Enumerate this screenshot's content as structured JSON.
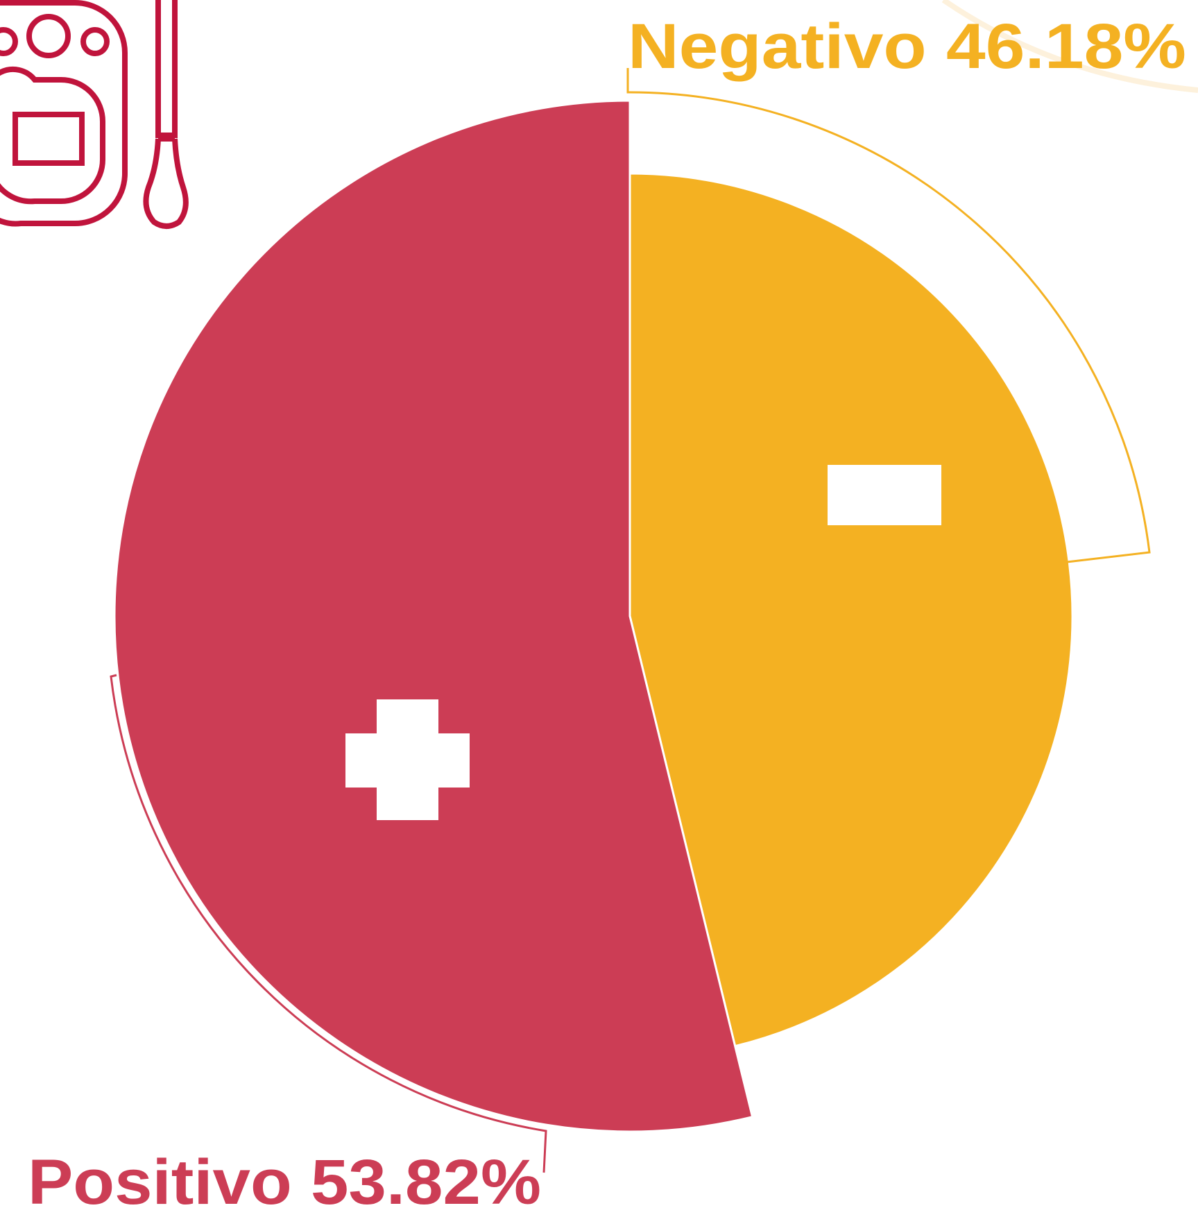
{
  "chart_data": {
    "type": "pie",
    "categories": [
      "Negativo",
      "Positivo"
    ],
    "values": [
      46.18,
      53.82
    ],
    "value_labels": [
      "46.18%",
      "53.82%"
    ],
    "colors": [
      "#f4b122",
      "#cc3d55"
    ]
  }
}
